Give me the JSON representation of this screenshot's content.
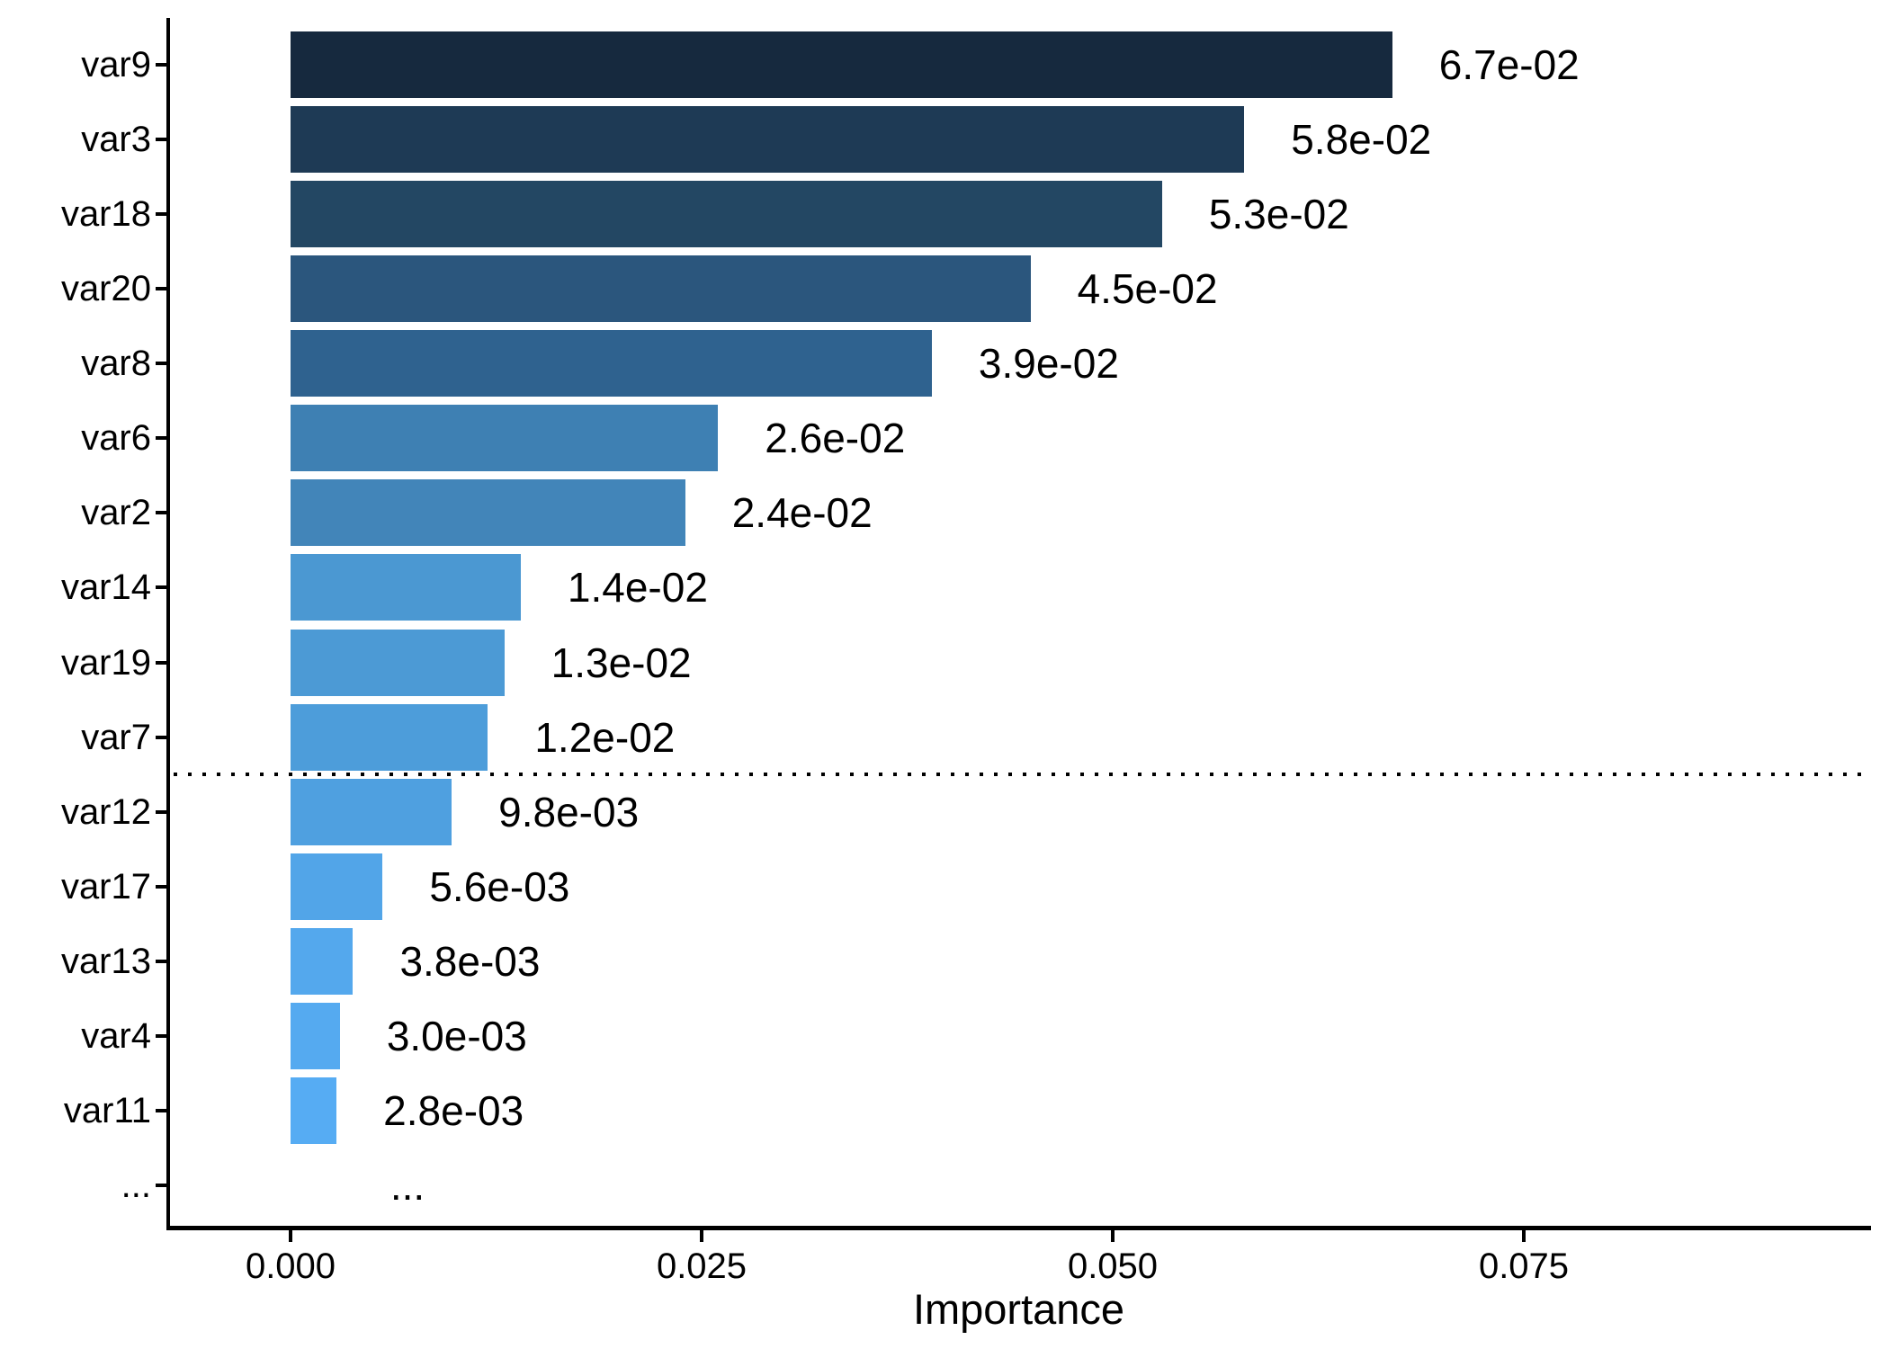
{
  "chart_data": {
    "type": "bar",
    "orientation": "horizontal",
    "title": "",
    "xlabel": "Importance",
    "ylabel": "",
    "grid": false,
    "legend": false,
    "background": "#FFFFFF",
    "axis_color": "#000000",
    "text_color": "#000000",
    "xlim": [
      -0.0075,
      0.0961
    ],
    "x_ticks": [
      {
        "label": "0.000",
        "value": 0.0
      },
      {
        "label": "0.025",
        "value": 0.025
      },
      {
        "label": "0.050",
        "value": 0.05
      },
      {
        "label": "0.075",
        "value": 0.075
      }
    ],
    "rows": [
      {
        "category": "var9",
        "value": 0.067,
        "label": "6.7e-02",
        "color": "#16293E"
      },
      {
        "category": "var3",
        "value": 0.058,
        "label": "5.8e-02",
        "color": "#1E3A55"
      },
      {
        "category": "var18",
        "value": 0.053,
        "label": "5.3e-02",
        "color": "#234763"
      },
      {
        "category": "var20",
        "value": 0.045,
        "label": "4.5e-02",
        "color": "#2B567D"
      },
      {
        "category": "var8",
        "value": 0.039,
        "label": "3.9e-02",
        "color": "#2F628F"
      },
      {
        "category": "var6",
        "value": 0.026,
        "label": "2.6e-02",
        "color": "#3E80B3"
      },
      {
        "category": "var2",
        "value": 0.024,
        "label": "2.4e-02",
        "color": "#4285B9"
      },
      {
        "category": "var14",
        "value": 0.014,
        "label": "1.4e-02",
        "color": "#4B98D2"
      },
      {
        "category": "var19",
        "value": 0.013,
        "label": "1.3e-02",
        "color": "#4C9AD5"
      },
      {
        "category": "var7",
        "value": 0.012,
        "label": "1.2e-02",
        "color": "#4D9DDA"
      },
      {
        "category": "var12",
        "value": 0.0098,
        "label": "9.8e-03",
        "color": "#4FA0E0"
      },
      {
        "category": "var17",
        "value": 0.0056,
        "label": "5.6e-03",
        "color": "#52A5E8"
      },
      {
        "category": "var13",
        "value": 0.0038,
        "label": "3.8e-03",
        "color": "#54A8ED"
      },
      {
        "category": "var4",
        "value": 0.003,
        "label": "3.0e-03",
        "color": "#55AAF0"
      },
      {
        "category": "var11",
        "value": 0.0028,
        "label": "2.8e-03",
        "color": "#56ACF3"
      },
      {
        "category": "...",
        "value": null,
        "label": "...",
        "color": null
      }
    ],
    "cutoff_line": {
      "style": "dotted",
      "color": "#000000",
      "after_category": "var7"
    }
  }
}
